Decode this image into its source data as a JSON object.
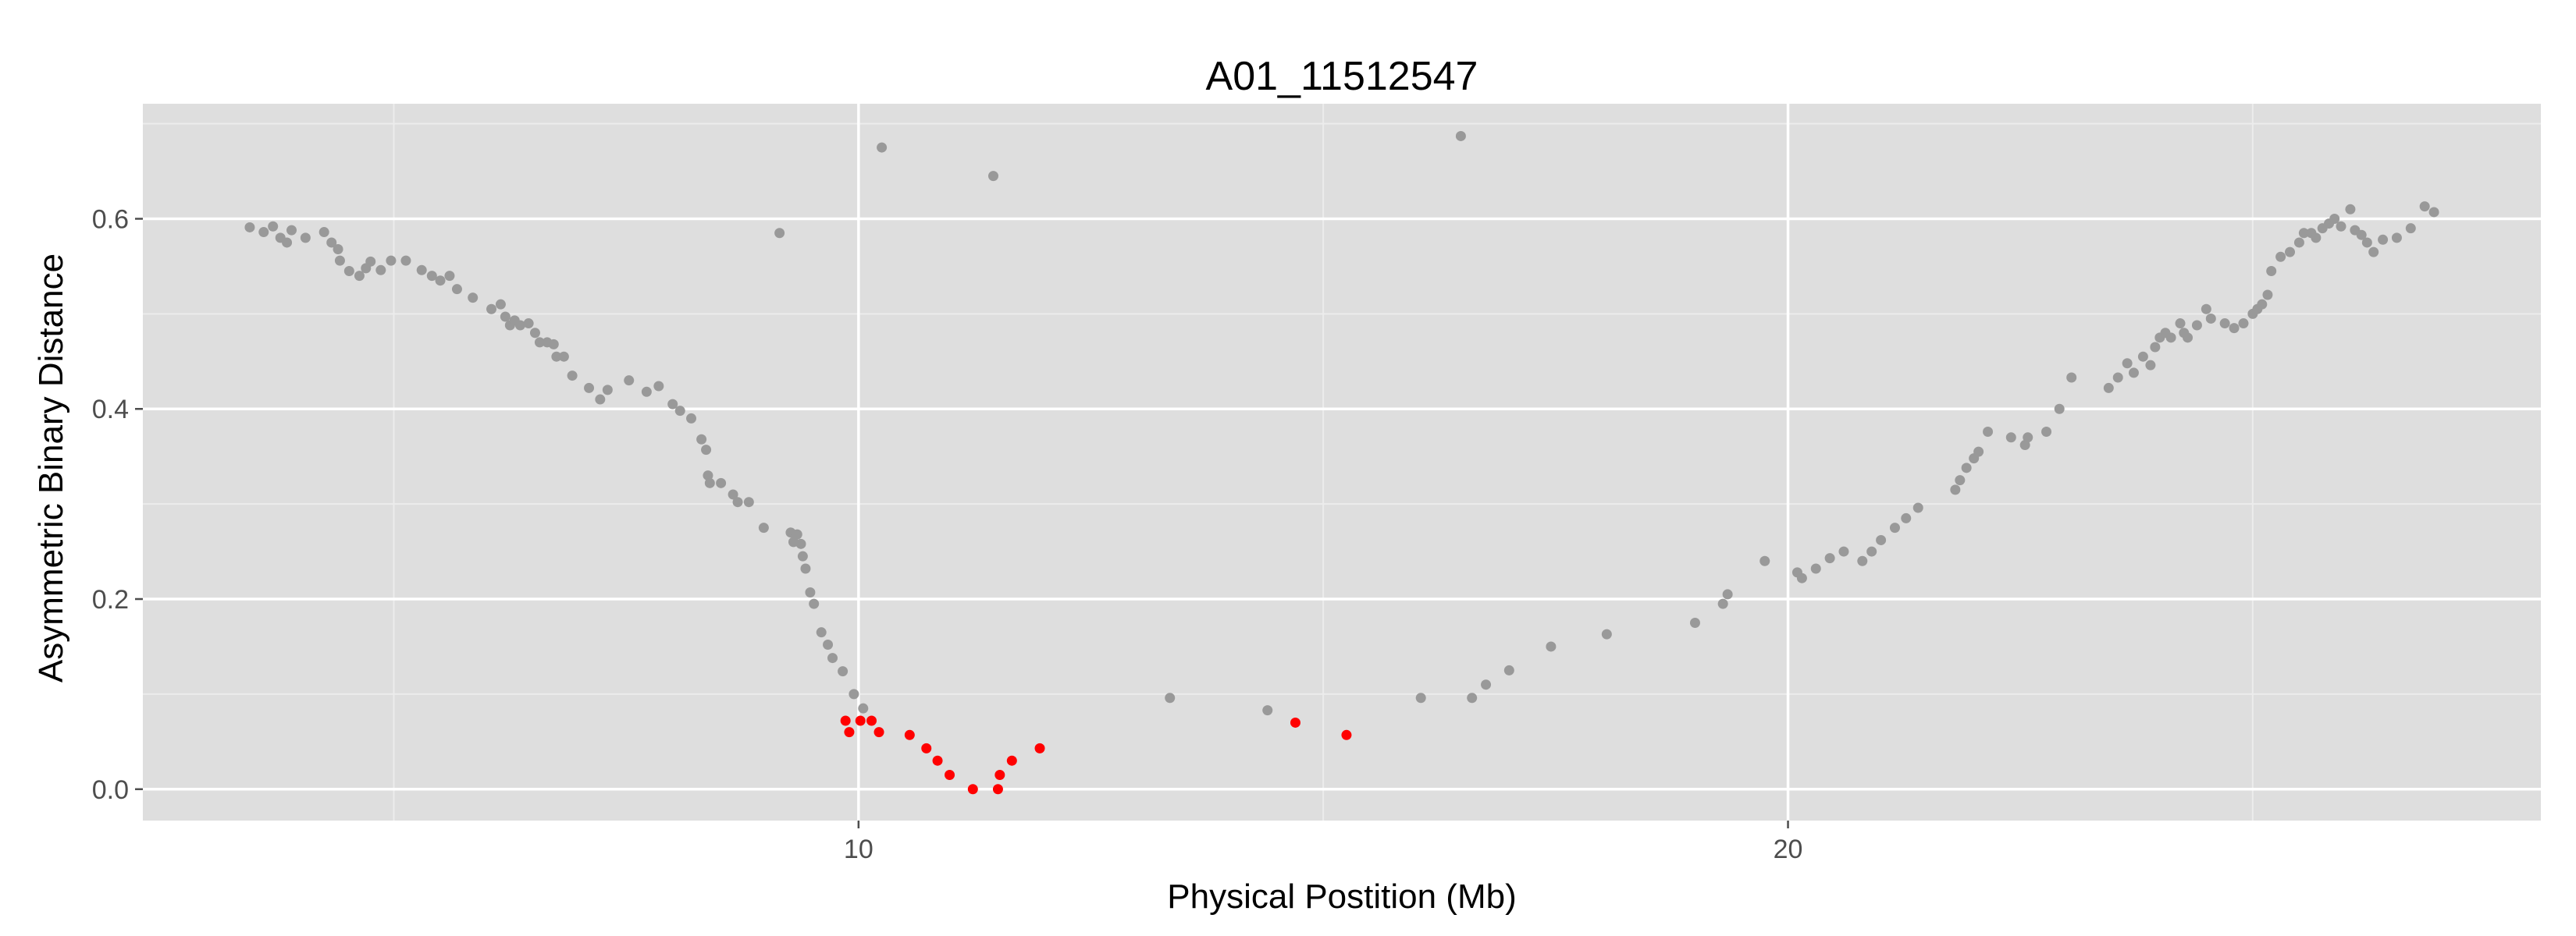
{
  "chart_data": {
    "type": "scatter",
    "title": "A01_11512547",
    "xlabel": "Physical Postition (Mb)",
    "ylabel": "Asymmetric Binary Distance",
    "xlim": [
      2.3,
      28.1
    ],
    "ylim": [
      -0.033,
      0.721
    ],
    "x_major_ticks": [
      10,
      20
    ],
    "x_minor_ticks": [
      5,
      15,
      25
    ],
    "y_major_ticks": [
      0.0,
      0.2,
      0.4,
      0.6
    ],
    "y_minor_ticks": [
      0.1,
      0.3,
      0.5,
      0.7
    ],
    "x_tick_labels": [
      "10",
      "20"
    ],
    "y_tick_labels": [
      "0.0",
      "0.2",
      "0.4",
      "0.6"
    ],
    "grid": true,
    "colors": {
      "panel_background": "#dedede",
      "grid_major": "#ffffff",
      "grid_minor": "#ececec",
      "points_other": "#999999",
      "points_highlighted": "#ff0000"
    },
    "series": [
      {
        "color": "#999999",
        "points": [
          [
            3.45,
            0.591
          ],
          [
            3.6,
            0.586
          ],
          [
            3.7,
            0.592
          ],
          [
            3.78,
            0.58
          ],
          [
            3.85,
            0.575
          ],
          [
            3.9,
            0.588
          ],
          [
            4.05,
            0.58
          ],
          [
            4.25,
            0.586
          ],
          [
            4.33,
            0.575
          ],
          [
            4.4,
            0.568
          ],
          [
            4.42,
            0.556
          ],
          [
            4.52,
            0.545
          ],
          [
            4.63,
            0.54
          ],
          [
            4.7,
            0.548
          ],
          [
            4.75,
            0.555
          ],
          [
            4.86,
            0.546
          ],
          [
            4.97,
            0.556
          ],
          [
            5.13,
            0.556
          ],
          [
            5.3,
            0.546
          ],
          [
            5.41,
            0.54
          ],
          [
            5.5,
            0.535
          ],
          [
            5.6,
            0.54
          ],
          [
            5.68,
            0.526
          ],
          [
            5.85,
            0.517
          ],
          [
            6.05,
            0.505
          ],
          [
            6.15,
            0.51
          ],
          [
            6.2,
            0.497
          ],
          [
            6.25,
            0.488
          ],
          [
            6.3,
            0.493
          ],
          [
            6.36,
            0.488
          ],
          [
            6.45,
            0.49
          ],
          [
            6.52,
            0.48
          ],
          [
            6.57,
            0.47
          ],
          [
            6.65,
            0.47
          ],
          [
            6.72,
            0.468
          ],
          [
            6.75,
            0.455
          ],
          [
            6.83,
            0.455
          ],
          [
            6.92,
            0.435
          ],
          [
            7.1,
            0.422
          ],
          [
            7.22,
            0.41
          ],
          [
            7.3,
            0.42
          ],
          [
            7.53,
            0.43
          ],
          [
            7.72,
            0.418
          ],
          [
            7.85,
            0.424
          ],
          [
            8.0,
            0.405
          ],
          [
            8.08,
            0.398
          ],
          [
            8.2,
            0.39
          ],
          [
            8.31,
            0.368
          ],
          [
            8.36,
            0.357
          ],
          [
            8.38,
            0.33
          ],
          [
            8.4,
            0.322
          ],
          [
            8.52,
            0.322
          ],
          [
            8.65,
            0.31
          ],
          [
            8.7,
            0.302
          ],
          [
            8.82,
            0.302
          ],
          [
            8.98,
            0.275
          ],
          [
            9.15,
            0.585
          ],
          [
            9.27,
            0.27
          ],
          [
            9.3,
            0.26
          ],
          [
            9.34,
            0.268
          ],
          [
            9.38,
            0.258
          ],
          [
            9.4,
            0.245
          ],
          [
            9.43,
            0.232
          ],
          [
            9.48,
            0.207
          ],
          [
            9.52,
            0.195
          ],
          [
            9.6,
            0.165
          ],
          [
            9.67,
            0.152
          ],
          [
            9.72,
            0.138
          ],
          [
            9.83,
            0.124
          ],
          [
            9.95,
            0.1
          ],
          [
            10.05,
            0.085
          ],
          [
            10.25,
            0.675
          ],
          [
            11.45,
            0.645
          ],
          [
            13.35,
            0.096
          ],
          [
            14.4,
            0.083
          ],
          [
            16.05,
            0.096
          ],
          [
            16.48,
            0.687
          ],
          [
            16.6,
            0.096
          ],
          [
            16.75,
            0.11
          ],
          [
            17.0,
            0.125
          ],
          [
            17.45,
            0.15
          ],
          [
            18.05,
            0.163
          ],
          [
            19.0,
            0.175
          ],
          [
            19.3,
            0.195
          ],
          [
            19.35,
            0.205
          ],
          [
            19.75,
            0.24
          ],
          [
            20.1,
            0.228
          ],
          [
            20.15,
            0.222
          ],
          [
            20.3,
            0.232
          ],
          [
            20.45,
            0.243
          ],
          [
            20.6,
            0.25
          ],
          [
            20.8,
            0.24
          ],
          [
            20.9,
            0.25
          ],
          [
            21.0,
            0.262
          ],
          [
            21.15,
            0.275
          ],
          [
            21.27,
            0.285
          ],
          [
            21.4,
            0.296
          ],
          [
            21.8,
            0.315
          ],
          [
            21.85,
            0.325
          ],
          [
            21.92,
            0.338
          ],
          [
            22.0,
            0.348
          ],
          [
            22.05,
            0.355
          ],
          [
            22.15,
            0.376
          ],
          [
            22.4,
            0.37
          ],
          [
            22.55,
            0.362
          ],
          [
            22.58,
            0.37
          ],
          [
            22.78,
            0.376
          ],
          [
            22.92,
            0.4
          ],
          [
            23.05,
            0.433
          ],
          [
            23.45,
            0.422
          ],
          [
            23.55,
            0.433
          ],
          [
            23.65,
            0.448
          ],
          [
            23.72,
            0.438
          ],
          [
            23.82,
            0.455
          ],
          [
            23.9,
            0.446
          ],
          [
            23.95,
            0.465
          ],
          [
            24.0,
            0.475
          ],
          [
            24.06,
            0.48
          ],
          [
            24.12,
            0.475
          ],
          [
            24.22,
            0.49
          ],
          [
            24.26,
            0.48
          ],
          [
            24.3,
            0.475
          ],
          [
            24.4,
            0.488
          ],
          [
            24.5,
            0.505
          ],
          [
            24.55,
            0.495
          ],
          [
            24.7,
            0.49
          ],
          [
            24.8,
            0.485
          ],
          [
            24.9,
            0.49
          ],
          [
            25.0,
            0.5
          ],
          [
            25.05,
            0.505
          ],
          [
            25.1,
            0.51
          ],
          [
            25.16,
            0.52
          ],
          [
            25.2,
            0.545
          ],
          [
            25.3,
            0.56
          ],
          [
            25.4,
            0.565
          ],
          [
            25.5,
            0.575
          ],
          [
            25.55,
            0.585
          ],
          [
            25.63,
            0.585
          ],
          [
            25.68,
            0.58
          ],
          [
            25.75,
            0.59
          ],
          [
            25.82,
            0.595
          ],
          [
            25.88,
            0.6
          ],
          [
            25.95,
            0.592
          ],
          [
            26.05,
            0.61
          ],
          [
            26.1,
            0.588
          ],
          [
            26.17,
            0.583
          ],
          [
            26.23,
            0.575
          ],
          [
            26.3,
            0.565
          ],
          [
            26.4,
            0.578
          ],
          [
            26.55,
            0.58
          ],
          [
            26.7,
            0.59
          ],
          [
            26.85,
            0.613
          ],
          [
            26.95,
            0.607
          ]
        ]
      },
      {
        "color": "#ff0000",
        "points": [
          [
            9.86,
            0.072
          ],
          [
            9.9,
            0.06
          ],
          [
            10.02,
            0.072
          ],
          [
            10.14,
            0.072
          ],
          [
            10.22,
            0.06
          ],
          [
            10.55,
            0.057
          ],
          [
            10.73,
            0.043
          ],
          [
            10.85,
            0.03
          ],
          [
            10.98,
            0.015
          ],
          [
            11.23,
            0.0
          ],
          [
            11.5,
            0.0
          ],
          [
            11.52,
            0.015
          ],
          [
            11.65,
            0.03
          ],
          [
            11.95,
            0.043
          ],
          [
            14.7,
            0.07
          ],
          [
            15.25,
            0.057
          ]
        ]
      }
    ]
  }
}
